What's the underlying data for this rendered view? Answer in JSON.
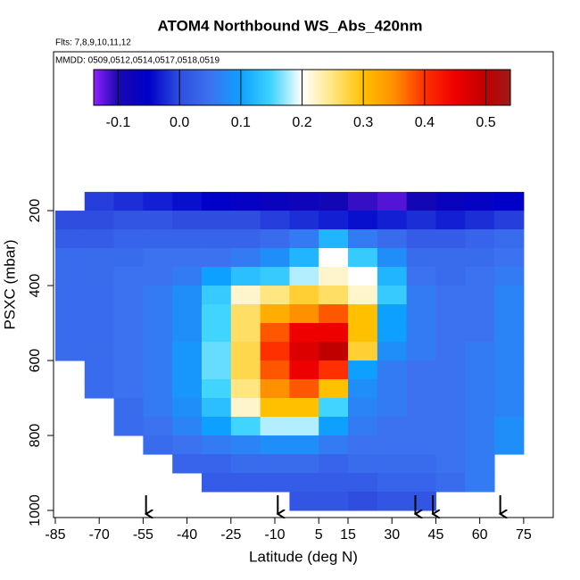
{
  "chart_data": {
    "type": "heatmap",
    "title": "ATOM4 Northbound WS_Abs_420nm",
    "subtitle": "Flts: 7,8,9,10,11,12",
    "annotation": "MMDD: 0509,0512,0514,0517,0518,0519",
    "x_label": "Latitude (deg N)",
    "y_label": "PSXC (mbar)",
    "x": [
      -80,
      -70,
      -60,
      -50,
      -40,
      -30,
      -20,
      -10,
      0,
      10,
      20,
      30,
      40,
      50,
      60,
      70
    ],
    "y": [
      175,
      225,
      275,
      325,
      375,
      425,
      475,
      525,
      575,
      625,
      675,
      725,
      775,
      825,
      875,
      925,
      975
    ],
    "values": [
      [
        null,
        -0.01,
        -0.02,
        -0.03,
        -0.04,
        -0.05,
        -0.06,
        -0.07,
        -0.08,
        -0.09,
        -0.11,
        -0.12,
        -0.09,
        -0.07,
        -0.06,
        -0.05
      ],
      [
        0.0,
        0.0,
        0.01,
        0.01,
        0.0,
        0.0,
        0.0,
        -0.01,
        -0.02,
        -0.03,
        -0.04,
        -0.03,
        -0.02,
        -0.03,
        -0.02,
        -0.01
      ],
      [
        0.02,
        0.02,
        0.03,
        0.03,
        0.03,
        0.03,
        0.03,
        0.04,
        0.06,
        0.12,
        0.06,
        0.04,
        0.02,
        0.02,
        0.03,
        0.04
      ],
      [
        0.04,
        0.04,
        0.04,
        0.05,
        0.05,
        0.05,
        0.06,
        0.08,
        0.12,
        0.2,
        0.14,
        0.08,
        0.04,
        0.04,
        0.04,
        0.05
      ],
      [
        0.04,
        0.04,
        0.05,
        0.05,
        0.06,
        0.1,
        0.13,
        0.14,
        0.18,
        0.22,
        0.2,
        0.12,
        0.05,
        0.04,
        0.05,
        0.06
      ],
      [
        0.04,
        0.04,
        0.05,
        0.06,
        0.08,
        0.14,
        0.22,
        0.25,
        0.28,
        0.26,
        0.22,
        0.14,
        0.06,
        0.05,
        0.05,
        0.07
      ],
      [
        0.04,
        0.04,
        0.05,
        0.06,
        0.08,
        0.15,
        0.26,
        0.32,
        0.35,
        0.38,
        0.3,
        0.1,
        0.06,
        0.05,
        0.05,
        0.07
      ],
      [
        0.04,
        0.04,
        0.05,
        0.06,
        0.08,
        0.15,
        0.26,
        0.38,
        0.45,
        0.45,
        0.3,
        0.1,
        0.06,
        0.05,
        0.05,
        0.07
      ],
      [
        0.04,
        0.04,
        0.05,
        0.06,
        0.09,
        0.16,
        0.27,
        0.4,
        0.47,
        0.5,
        0.28,
        0.08,
        0.06,
        0.05,
        0.06,
        0.07
      ],
      [
        null,
        0.04,
        0.05,
        0.06,
        0.09,
        0.16,
        0.27,
        0.38,
        0.45,
        0.4,
        0.1,
        0.06,
        0.05,
        0.05,
        0.06,
        0.07
      ],
      [
        null,
        0.04,
        0.05,
        0.06,
        0.09,
        0.15,
        0.25,
        0.35,
        0.38,
        0.3,
        0.08,
        0.06,
        0.05,
        0.05,
        0.06,
        0.07
      ],
      [
        null,
        null,
        0.04,
        0.06,
        0.08,
        0.13,
        0.22,
        0.3,
        0.3,
        0.15,
        0.07,
        0.06,
        0.05,
        0.05,
        0.06,
        0.07
      ],
      [
        null,
        null,
        0.04,
        0.05,
        0.07,
        0.1,
        0.15,
        0.18,
        0.18,
        0.1,
        0.06,
        0.05,
        0.05,
        0.05,
        0.06,
        0.08
      ],
      [
        null,
        null,
        null,
        0.04,
        0.05,
        0.06,
        0.07,
        0.08,
        0.08,
        0.06,
        0.05,
        0.05,
        0.05,
        0.05,
        0.06,
        0.08
      ],
      [
        null,
        null,
        null,
        null,
        0.03,
        0.03,
        0.04,
        0.04,
        0.04,
        0.03,
        0.04,
        0.04,
        0.04,
        0.05,
        0.06,
        null
      ],
      [
        null,
        null,
        null,
        null,
        null,
        0.02,
        0.02,
        0.02,
        0.02,
        0.02,
        0.02,
        0.03,
        0.03,
        0.04,
        0.06,
        null
      ],
      [
        null,
        null,
        null,
        null,
        null,
        null,
        null,
        null,
        0.01,
        0.01,
        0.0,
        0.01,
        0.01,
        null,
        null,
        null
      ]
    ],
    "xlim": [
      -85.6,
      85.1
    ],
    "xticks": [
      -85,
      -70,
      -55,
      -40,
      -25,
      -10,
      5,
      15,
      30,
      45,
      60,
      75
    ],
    "ylim": [
      1019,
      -224
    ],
    "yticks": [
      200,
      400,
      600,
      800,
      1000
    ],
    "clim": [
      -0.14,
      0.54
    ],
    "cticks": [
      -0.1,
      {
        "value": 0,
        "label": "0.0"
      },
      0.1,
      0.2,
      0.3,
      0.4,
      0.5
    ],
    "colorscale": [
      {
        "value": -0.14,
        "color": "#9020ff"
      },
      {
        "value": -0.1,
        "color": "#1808b0"
      },
      {
        "value": -0.05,
        "color": "#0000c8"
      },
      {
        "value": 0,
        "color": "#2f4ee0"
      },
      {
        "value": 0.05,
        "color": "#3c72f0"
      },
      {
        "value": 0.1,
        "color": "#0ea0ff"
      },
      {
        "value": 0.15,
        "color": "#40d4ff"
      },
      {
        "value": 0.2,
        "color": "#ffffff"
      },
      {
        "value": 0.25,
        "color": "#ffe680"
      },
      {
        "value": 0.3,
        "color": "#ffc000"
      },
      {
        "value": 0.35,
        "color": "#ff9000"
      },
      {
        "value": 0.4,
        "color": "#ff3000"
      },
      {
        "value": 0.45,
        "color": "#ee0000"
      },
      {
        "value": 0.5,
        "color": "#c00000"
      },
      {
        "value": 0.54,
        "color": "#a01818"
      }
    ],
    "arrows": [
      -54,
      -9,
      38,
      44,
      67
    ]
  }
}
